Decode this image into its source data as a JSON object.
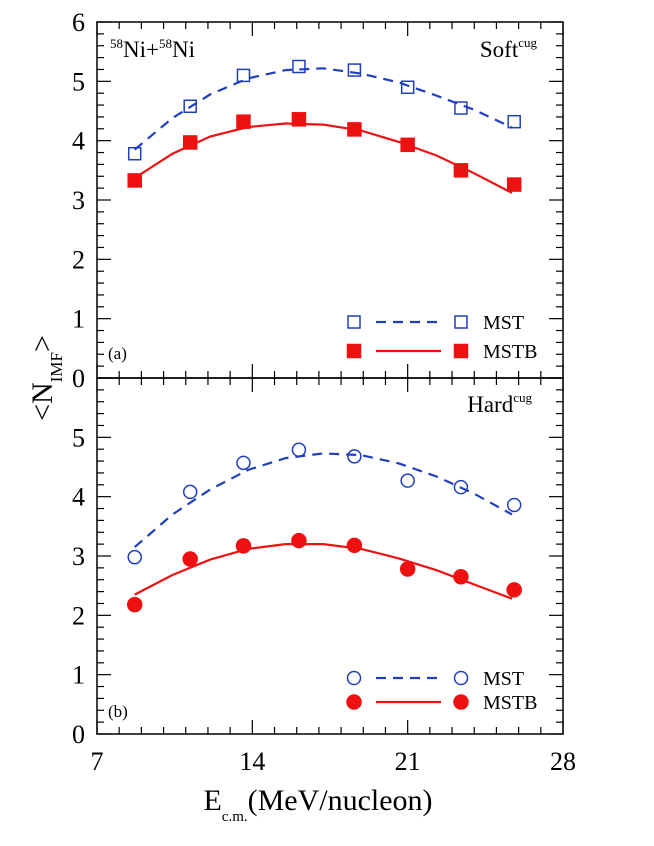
{
  "chart_data": [
    {
      "panel_label": "(a)",
      "type": "scatter",
      "title": "",
      "system_label": {
        "mass1": "58",
        "elem1": "Ni+",
        "mass2": "58",
        "elem2": "Ni"
      },
      "eos_label": {
        "main": "Soft",
        "sup": "cug"
      },
      "xlim": [
        7,
        28
      ],
      "ylim": [
        0,
        6
      ],
      "yticks": [
        "0",
        "1",
        "2",
        "3",
        "4",
        "5",
        "6"
      ],
      "grid": false,
      "legend_position": "bottom-right",
      "series": [
        {
          "name": "MST",
          "color": "#1f3fbf",
          "marker": "open-square",
          "line": "dashed",
          "x": [
            8.7,
            11.2,
            13.6,
            16.1,
            18.6,
            21.0,
            23.4,
            25.8
          ],
          "y": [
            3.78,
            4.58,
            5.1,
            5.25,
            5.19,
            4.9,
            4.55,
            4.32
          ],
          "fit_x": [
            8.7,
            10.4,
            12.1,
            13.8,
            15.5,
            17.2,
            18.9,
            20.6,
            22.3,
            24.0,
            25.7
          ],
          "fit_y": [
            3.85,
            4.38,
            4.78,
            5.05,
            5.19,
            5.22,
            5.13,
            4.98,
            4.76,
            4.52,
            4.22
          ]
        },
        {
          "name": "MSTB",
          "color": "#ee1111",
          "marker": "filled-square",
          "line": "solid",
          "x": [
            8.7,
            11.2,
            13.6,
            16.1,
            18.6,
            21.0,
            23.4,
            25.8
          ],
          "y": [
            3.33,
            3.97,
            4.32,
            4.36,
            4.19,
            3.93,
            3.5,
            3.26
          ],
          "fit_x": [
            8.7,
            10.4,
            12.1,
            13.8,
            15.5,
            17.2,
            18.9,
            20.6,
            22.3,
            24.0,
            25.7
          ],
          "fit_y": [
            3.37,
            3.78,
            4.07,
            4.23,
            4.29,
            4.27,
            4.17,
            3.98,
            3.75,
            3.45,
            3.12
          ]
        }
      ]
    },
    {
      "panel_label": "(b)",
      "type": "scatter",
      "title": "",
      "eos_label": {
        "main": "Hard",
        "sup": "cug"
      },
      "xlim": [
        7,
        28
      ],
      "ylim": [
        0,
        6
      ],
      "yticks": [
        "0",
        "1",
        "2",
        "3",
        "4",
        "5"
      ],
      "grid": false,
      "legend_position": "bottom-right",
      "series": [
        {
          "name": "MST",
          "color": "#1f3fbf",
          "marker": "open-circle",
          "line": "dashed",
          "x": [
            8.7,
            11.2,
            13.6,
            16.1,
            18.6,
            21.0,
            23.4,
            25.8
          ],
          "y": [
            2.98,
            4.08,
            4.57,
            4.79,
            4.68,
            4.27,
            4.16,
            3.86
          ],
          "fit_x": [
            8.7,
            10.4,
            12.1,
            13.8,
            15.5,
            17.2,
            18.9,
            20.6,
            22.3,
            24.0,
            25.7
          ],
          "fit_y": [
            3.15,
            3.7,
            4.12,
            4.45,
            4.65,
            4.73,
            4.7,
            4.56,
            4.34,
            4.05,
            3.7
          ]
        },
        {
          "name": "MSTB",
          "color": "#ee1111",
          "marker": "filled-circle",
          "line": "solid",
          "x": [
            8.7,
            11.2,
            13.6,
            16.1,
            18.6,
            21.0,
            23.4,
            25.8
          ],
          "y": [
            2.18,
            2.95,
            3.17,
            3.26,
            3.18,
            2.78,
            2.65,
            2.43
          ],
          "fit_x": [
            8.7,
            10.4,
            12.1,
            13.8,
            15.5,
            17.2,
            18.9,
            20.6,
            22.3,
            24.0,
            25.7
          ],
          "fit_y": [
            2.35,
            2.68,
            2.94,
            3.12,
            3.2,
            3.2,
            3.12,
            2.96,
            2.76,
            2.52,
            2.28
          ]
        }
      ]
    }
  ],
  "axes": {
    "xticks": [
      "7",
      "14",
      "21",
      "28"
    ],
    "xlabel": {
      "main": "E",
      "sub": "c.m.",
      "rest": "(MeV/nucleon)"
    },
    "ylabel": {
      "open": "<N",
      "sub": "IMF",
      "close": ">"
    }
  }
}
